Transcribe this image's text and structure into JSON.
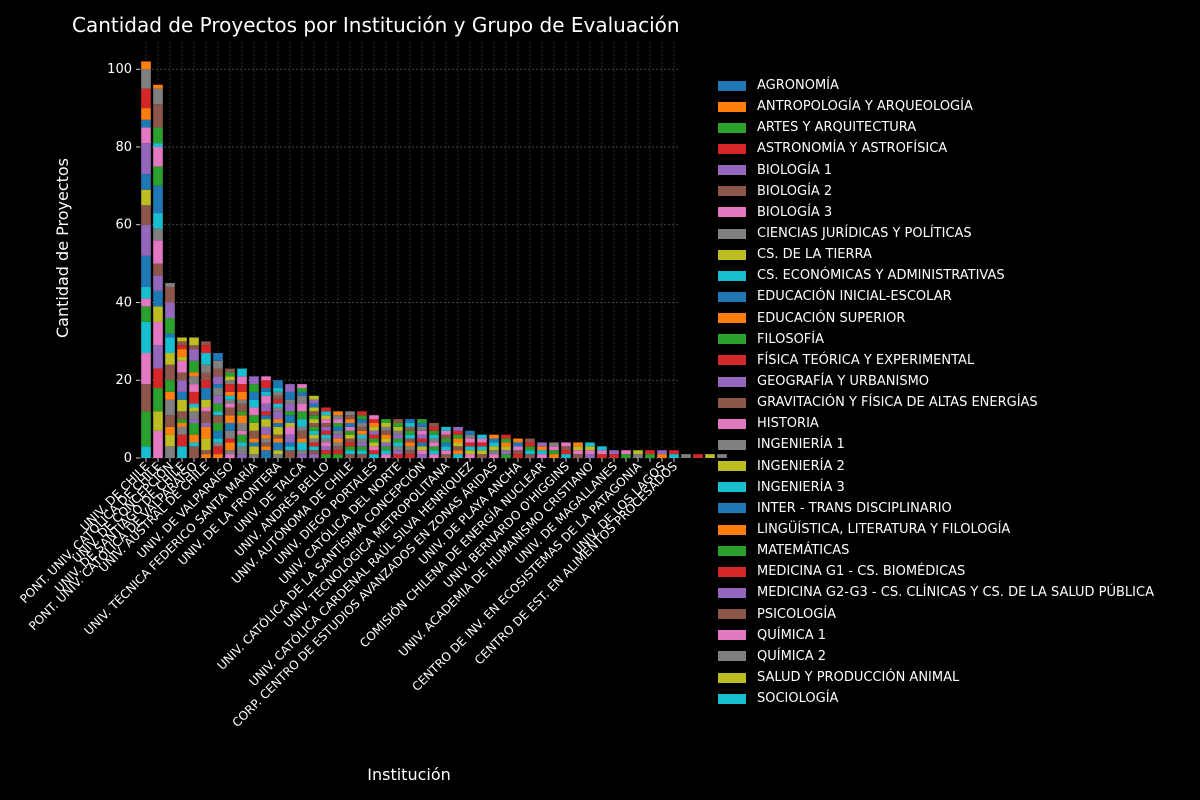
{
  "chart_data": {
    "type": "bar",
    "stacked": true,
    "title": "Cantidad de Proyectos por Institución y Grupo de Evaluación",
    "xlabel": "Institución",
    "ylabel": "Cantidad de Proyectos",
    "ylim": [
      0,
      107
    ],
    "yticks": [
      0,
      20,
      40,
      60,
      80,
      100
    ],
    "grid": true,
    "legend_position": "right",
    "categories": [
      "UNIV. DE CHILE",
      "PONT. UNIV. CATÓLICA DE CHILE",
      "UNIV. DE CONCEPCIÓN",
      "UNIV. DE SANTIAGO DE CHILE",
      "PONT. UNIV. CATÓLICA DE VALPARAÍSO",
      "UNIV. AUSTRAL DE CHILE",
      "",
      "UNIV. DE VALPARAÍSO",
      "",
      "UNIV. TÉCNICA FEDERICO SANTA MARÍA",
      "",
      "UNIV. DE LA FRONTERA",
      "",
      "UNIV. DE TALCA",
      "",
      "UNIV. ANDRÉS BELLO",
      "",
      "UNIV. AUTÓNOMA DE CHILE",
      "",
      "UNIV. DIEGO PORTALES",
      "",
      "UNIV. CATÓLICA DEL NORTE",
      "",
      "UNIV. CATÓLICA DE LA SANTÍSIMA CONCEPCIÓN",
      "",
      "UNIV. TECNOLÓGICA METROPOLITANA",
      "",
      "UNIV. CATÓLICA CARDENAL RAÚL SILVA HENRÍQUEZ",
      "",
      "CORP. CENTRO DE ESTUDIOS AVANZADOS EN ZONAS ÁRIDAS",
      "",
      "UNIV. DE PLAYA ANCHA",
      "",
      "COMISIÓN CHILENA DE ENERGÍA NUCLEAR",
      "",
      "UNIV. BERNARDO O'HIGGINS",
      "",
      "UNIV. ACADEMIA DE HUMANISMO CRISTIANO",
      "",
      "UNIV. DE MAGALLANES",
      "",
      "CENTRO DE INV. EN ECOSISTEMAS DE LA PATAGONIA",
      "",
      "UNIV. DE LOS LAGOS",
      "CENTRO DE EST. EN ALIMENTOS PROCESADOS"
    ],
    "totals": [
      102,
      96,
      45,
      31,
      31,
      30,
      27,
      23,
      23,
      21,
      21,
      20,
      19,
      19,
      16,
      13,
      12,
      12,
      12,
      11,
      10,
      10,
      10,
      10,
      9,
      8,
      8,
      7,
      6,
      6,
      6,
      5,
      5,
      4,
      4,
      4,
      4,
      4,
      3,
      2,
      2,
      2,
      2,
      2,
      2,
      1,
      1,
      1,
      1
    ],
    "series": [
      {
        "name": "AGRONOMÍA",
        "color": "#1f77b4"
      },
      {
        "name": "ANTROPOLOGÍA Y ARQUEOLOGÍA",
        "color": "#ff7f0e"
      },
      {
        "name": "ARTES Y ARQUITECTURA",
        "color": "#2ca02c"
      },
      {
        "name": "ASTRONOMÍA Y ASTROFÍSICA",
        "color": "#d62728"
      },
      {
        "name": "BIOLOGÍA 1",
        "color": "#9467bd"
      },
      {
        "name": "BIOLOGÍA 2",
        "color": "#8c564b"
      },
      {
        "name": "BIOLOGÍA 3",
        "color": "#e377c2"
      },
      {
        "name": "CIENCIAS JURÍDICAS Y POLÍTICAS",
        "color": "#7f7f7f"
      },
      {
        "name": "CS. DE LA TIERRA",
        "color": "#bcbd22"
      },
      {
        "name": "CS. ECONÓMICAS Y ADMINISTRATIVAS",
        "color": "#17becf"
      },
      {
        "name": "EDUCACIÓN INICIAL-ESCOLAR",
        "color": "#1f77b4"
      },
      {
        "name": "EDUCACIÓN SUPERIOR",
        "color": "#ff7f0e"
      },
      {
        "name": "FILOSOFÍA",
        "color": "#2ca02c"
      },
      {
        "name": "FÍSICA TEÓRICA Y EXPERIMENTAL",
        "color": "#d62728"
      },
      {
        "name": "GEOGRAFÍA Y URBANISMO",
        "color": "#9467bd"
      },
      {
        "name": "GRAVITACIÓN Y FÍSICA DE ALTAS ENERGÍAS",
        "color": "#8c564b"
      },
      {
        "name": "HISTORIA",
        "color": "#e377c2"
      },
      {
        "name": "INGENIERÍA 1",
        "color": "#7f7f7f"
      },
      {
        "name": "INGENIERÍA 2",
        "color": "#bcbd22"
      },
      {
        "name": "INGENIERÍA 3",
        "color": "#17becf"
      },
      {
        "name": "INTER - TRANS DISCIPLINARIO",
        "color": "#1f77b4"
      },
      {
        "name": "LINGÜÍSTICA, LITERATURA Y FILOLOGÍA",
        "color": "#ff7f0e"
      },
      {
        "name": "MATEMÁTICAS",
        "color": "#2ca02c"
      },
      {
        "name": "MEDICINA G1 - CS. BIOMÉDICAS",
        "color": "#d62728"
      },
      {
        "name": "MEDICINA G2-G3 - CS. CLÍNICAS Y CS. DE LA SALUD PÚBLICA",
        "color": "#9467bd"
      },
      {
        "name": "PSICOLOGÍA",
        "color": "#8c564b"
      },
      {
        "name": "QUÍMICA 1",
        "color": "#e377c2"
      },
      {
        "name": "QUÍMICA 2",
        "color": "#7f7f7f"
      },
      {
        "name": "SALUD Y PRODUCCIÓN ANIMAL",
        "color": "#bcbd22"
      },
      {
        "name": "SOCIOLOGÍA",
        "color": "#17becf"
      }
    ]
  }
}
